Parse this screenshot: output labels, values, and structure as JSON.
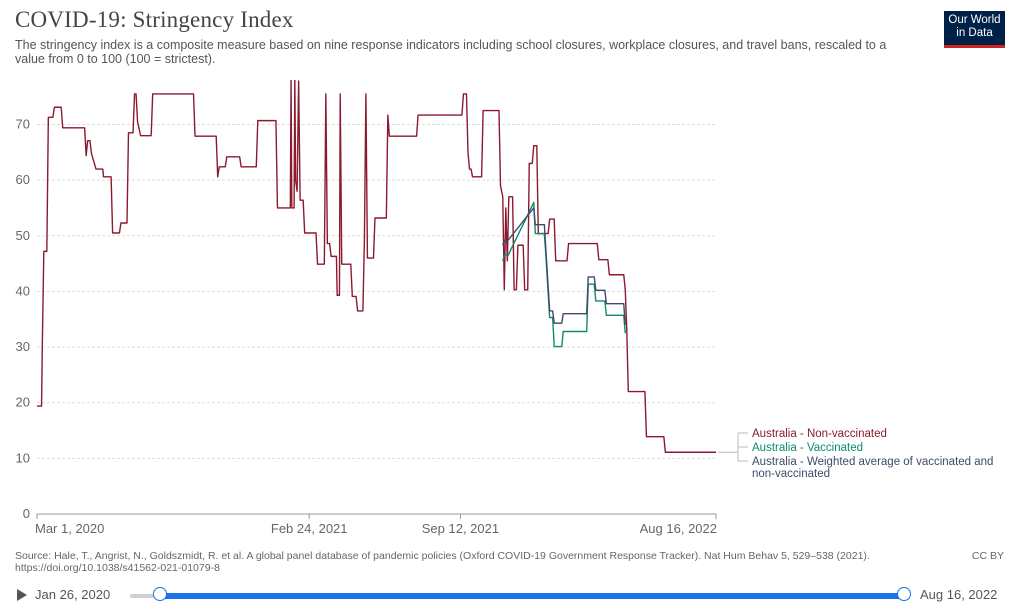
{
  "title": "COVID-19: Stringency Index",
  "subtitle": "The stringency index is a composite measure based on nine response indicators including school closures, workplace closures, and travel bans, rescaled to a value from 0 to 100 (100 = strictest).",
  "logo": {
    "line1": "Our World",
    "line2": "in Data"
  },
  "footer": {
    "source_line1": "Source: Hale, T., Angrist, N., Goldszmidt, R. et al. A global panel database of pandemic policies (Oxford COVID-19 Government Response Tracker). Nat Hum Behav 5, 529–538 (2021).",
    "source_line2": "https://doi.org/10.1038/s41562-021-01079-8",
    "license": "CC BY"
  },
  "timeline": {
    "start_label": "Jan 26, 2020",
    "end_label": "Aug 16, 2022",
    "start_fraction": 0.0,
    "end_fraction": 1.0
  },
  "colors": {
    "nonvax": "#8b1a2f",
    "vax": "#0f8a6a",
    "avg": "#3d4a6b",
    "grid": "#dddddd",
    "axis": "#666666"
  },
  "chart_data": {
    "type": "line",
    "title": "COVID-19: Stringency Index",
    "ylim": [
      0,
      78
    ],
    "yticks": [
      0,
      10,
      20,
      30,
      40,
      50,
      60,
      70
    ],
    "xlim": [
      "2020-03-01",
      "2022-08-16"
    ],
    "xticks": [
      {
        "date": "2020-03-01",
        "label": "Mar 1, 2020"
      },
      {
        "date": "2021-02-24",
        "label": "Feb 24, 2021"
      },
      {
        "date": "2021-09-12",
        "label": "Sep 12, 2021"
      },
      {
        "date": "2022-08-16",
        "label": "Aug 16, 2022"
      }
    ],
    "grid": true,
    "legend_position": "right",
    "series": [
      {
        "name": "Australia - Non-vaccinated",
        "color": "#8b1a2f",
        "points": [
          [
            "2020-03-01",
            19.4
          ],
          [
            "2020-03-07",
            19.4
          ],
          [
            "2020-03-08",
            30.1
          ],
          [
            "2020-03-10",
            47.2
          ],
          [
            "2020-03-14",
            47.2
          ],
          [
            "2020-03-16",
            71.3
          ],
          [
            "2020-03-22",
            71.3
          ],
          [
            "2020-03-24",
            73.1
          ],
          [
            "2020-04-02",
            73.1
          ],
          [
            "2020-04-04",
            69.4
          ],
          [
            "2020-05-03",
            69.4
          ],
          [
            "2020-05-05",
            64.4
          ],
          [
            "2020-05-07",
            67.1
          ],
          [
            "2020-05-10",
            67.1
          ],
          [
            "2020-05-12",
            64.8
          ],
          [
            "2020-05-18",
            62.0
          ],
          [
            "2020-05-27",
            62.0
          ],
          [
            "2020-05-28",
            60.6
          ],
          [
            "2020-06-07",
            60.6
          ],
          [
            "2020-06-09",
            50.5
          ],
          [
            "2020-06-18",
            50.5
          ],
          [
            "2020-06-20",
            52.3
          ],
          [
            "2020-06-28",
            52.3
          ],
          [
            "2020-06-30",
            68.5
          ],
          [
            "2020-07-06",
            68.5
          ],
          [
            "2020-07-08",
            75.5
          ],
          [
            "2020-07-10",
            75.5
          ],
          [
            "2020-07-12",
            70.5
          ],
          [
            "2020-07-16",
            68.0
          ],
          [
            "2020-07-30",
            68.0
          ],
          [
            "2020-08-01",
            75.5
          ],
          [
            "2020-09-24",
            75.5
          ],
          [
            "2020-09-26",
            67.9
          ],
          [
            "2020-10-24",
            67.9
          ],
          [
            "2020-10-26",
            60.6
          ],
          [
            "2020-10-28",
            62.4
          ],
          [
            "2020-11-05",
            62.4
          ],
          [
            "2020-11-07",
            64.2
          ],
          [
            "2020-11-24",
            64.2
          ],
          [
            "2020-11-26",
            62.4
          ],
          [
            "2020-12-16",
            62.4
          ],
          [
            "2020-12-18",
            70.7
          ],
          [
            "2021-01-11",
            70.7
          ],
          [
            "2021-01-13",
            55.0
          ],
          [
            "2021-01-30",
            55.0
          ],
          [
            "2021-01-31",
            78.0
          ],
          [
            "2021-02-01",
            55.0
          ],
          [
            "2021-02-04",
            55.0
          ],
          [
            "2021-02-05",
            78.0
          ],
          [
            "2021-02-06",
            60.0
          ],
          [
            "2021-02-08",
            58.0
          ],
          [
            "2021-02-10",
            77.8
          ],
          [
            "2021-02-12",
            56.4
          ],
          [
            "2021-02-16",
            56.4
          ],
          [
            "2021-02-18",
            50.5
          ],
          [
            "2021-03-05",
            50.5
          ],
          [
            "2021-03-07",
            44.9
          ],
          [
            "2021-03-16",
            44.9
          ],
          [
            "2021-03-18",
            75.5
          ],
          [
            "2021-03-20",
            48.6
          ],
          [
            "2021-03-23",
            48.6
          ],
          [
            "2021-03-25",
            46.3
          ],
          [
            "2021-04-01",
            46.3
          ],
          [
            "2021-04-02",
            39.3
          ],
          [
            "2021-04-05",
            39.3
          ],
          [
            "2021-04-06",
            75.5
          ],
          [
            "2021-04-08",
            44.9
          ],
          [
            "2021-04-20",
            44.9
          ],
          [
            "2021-04-22",
            39.1
          ],
          [
            "2021-04-27",
            39.1
          ],
          [
            "2021-04-29",
            36.5
          ],
          [
            "2021-05-06",
            36.5
          ],
          [
            "2021-05-08",
            49.3
          ],
          [
            "2021-05-10",
            75.5
          ],
          [
            "2021-05-12",
            46.0
          ],
          [
            "2021-05-20",
            46.0
          ],
          [
            "2021-05-22",
            53.2
          ],
          [
            "2021-06-06",
            53.2
          ],
          [
            "2021-06-08",
            71.7
          ],
          [
            "2021-06-10",
            67.9
          ],
          [
            "2021-07-16",
            67.9
          ],
          [
            "2021-07-18",
            71.7
          ],
          [
            "2021-09-14",
            71.7
          ],
          [
            "2021-09-16",
            75.5
          ],
          [
            "2021-09-20",
            75.5
          ],
          [
            "2021-09-22",
            65.0
          ],
          [
            "2021-09-24",
            62.0
          ],
          [
            "2021-09-26",
            62.0
          ],
          [
            "2021-09-28",
            60.6
          ],
          [
            "2021-10-10",
            60.6
          ],
          [
            "2021-10-12",
            72.5
          ],
          [
            "2021-11-02",
            72.5
          ],
          [
            "2021-11-04",
            59.0
          ],
          [
            "2021-11-07",
            57.0
          ],
          [
            "2021-11-09",
            40.3
          ],
          [
            "2021-11-11",
            55.0
          ],
          [
            "2021-11-13",
            45.5
          ],
          [
            "2021-11-15",
            57.0
          ],
          [
            "2021-11-20",
            57.0
          ],
          [
            "2021-11-22",
            40.3
          ],
          [
            "2021-11-25",
            40.3
          ],
          [
            "2021-11-27",
            48.3
          ],
          [
            "2021-12-04",
            48.3
          ],
          [
            "2021-12-06",
            40.3
          ],
          [
            "2021-12-10",
            40.3
          ],
          [
            "2021-12-12",
            63.0
          ],
          [
            "2021-12-16",
            63.0
          ],
          [
            "2021-12-18",
            66.2
          ],
          [
            "2021-12-22",
            66.2
          ],
          [
            "2021-12-24",
            50.4
          ],
          [
            "2022-01-06",
            50.4
          ],
          [
            "2022-01-08",
            53.0
          ],
          [
            "2022-01-14",
            53.0
          ],
          [
            "2022-01-16",
            45.5
          ],
          [
            "2022-01-31",
            45.5
          ],
          [
            "2022-02-02",
            48.6
          ],
          [
            "2022-03-12",
            48.6
          ],
          [
            "2022-03-14",
            45.7
          ],
          [
            "2022-03-26",
            45.7
          ],
          [
            "2022-03-28",
            43.0
          ],
          [
            "2022-04-16",
            43.0
          ],
          [
            "2022-04-18",
            40.3
          ],
          [
            "2022-04-20",
            33.0
          ],
          [
            "2022-04-22",
            22.0
          ],
          [
            "2022-05-14",
            22.0
          ],
          [
            "2022-05-16",
            13.9
          ],
          [
            "2022-06-08",
            13.9
          ],
          [
            "2022-06-10",
            11.1
          ],
          [
            "2022-08-16",
            11.1
          ]
        ]
      },
      {
        "name": "Australia - Vaccinated",
        "color": "#0f8a6a",
        "points": [
          [
            "2021-11-07",
            45.5
          ],
          [
            "2021-11-09",
            46.5
          ],
          [
            "2021-11-14",
            46.5
          ],
          [
            "2021-12-18",
            56.0
          ],
          [
            "2021-12-20",
            50.4
          ],
          [
            "2022-01-01",
            50.4
          ],
          [
            "2022-01-03",
            46.5
          ],
          [
            "2022-01-08",
            35.3
          ],
          [
            "2022-01-12",
            35.3
          ],
          [
            "2022-01-14",
            30.1
          ],
          [
            "2022-01-24",
            30.1
          ],
          [
            "2022-01-26",
            32.8
          ],
          [
            "2022-02-26",
            32.8
          ],
          [
            "2022-02-28",
            41.3
          ],
          [
            "2022-03-08",
            41.3
          ],
          [
            "2022-03-10",
            38.3
          ],
          [
            "2022-03-22",
            38.3
          ],
          [
            "2022-03-24",
            35.7
          ],
          [
            "2022-04-16",
            35.7
          ],
          [
            "2022-04-18",
            32.5
          ]
        ]
      },
      {
        "name": "Australia - Weighted average of vaccinated and non-vaccinated",
        "color": "#3d4a6b",
        "points": [
          [
            "2021-11-07",
            48.3
          ],
          [
            "2021-11-09",
            49.2
          ],
          [
            "2021-11-14",
            49.2
          ],
          [
            "2021-12-18",
            55.0
          ],
          [
            "2021-12-20",
            52.0
          ],
          [
            "2022-01-01",
            52.0
          ],
          [
            "2022-01-03",
            47.5
          ],
          [
            "2022-01-08",
            36.5
          ],
          [
            "2022-01-12",
            36.5
          ],
          [
            "2022-01-14",
            34.3
          ],
          [
            "2022-01-24",
            34.3
          ],
          [
            "2022-01-26",
            36.0
          ],
          [
            "2022-02-26",
            36.0
          ],
          [
            "2022-02-28",
            42.6
          ],
          [
            "2022-03-08",
            42.6
          ],
          [
            "2022-03-10",
            40.2
          ],
          [
            "2022-03-22",
            40.2
          ],
          [
            "2022-03-24",
            37.8
          ],
          [
            "2022-04-16",
            37.8
          ],
          [
            "2022-04-18",
            34.0
          ]
        ]
      }
    ]
  }
}
